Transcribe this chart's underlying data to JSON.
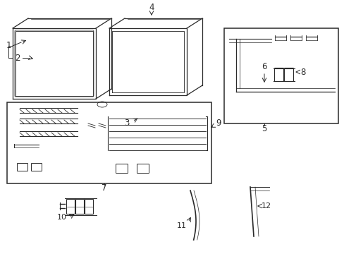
{
  "bg_color": "#ffffff",
  "line_color": "#2a2a2a",
  "fig_width": 4.89,
  "fig_height": 3.6,
  "dpi": 100,
  "label_fontsize": 8.5
}
